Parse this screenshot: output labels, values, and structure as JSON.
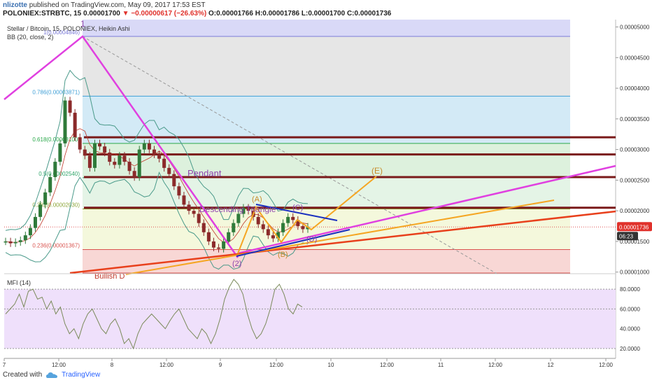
{
  "header": {
    "user": "nlizotte",
    "published": "published on TradingView.com, May 09, 2017 17:53 EST",
    "symbol": "POLONIEX:STRBTC, 15",
    "last": "0.00001700",
    "change": "▼ −0.00000617 (−26.63%)",
    "o": "O:0.00001766",
    "h": "H:0.00001786",
    "l": "L:0.00001700",
    "c": "C:0.00001736"
  },
  "overlay": {
    "title": "Stellar / Bitcoin, 15, POLONIEX, Heikin Ashi",
    "bb": "BB (20, close, 2)",
    "mfi": "MFI (14)"
  },
  "annotations": {
    "wave_1": "1",
    "wave_2": "(2)",
    "wave_a": "(A)",
    "wave_b": "(B)",
    "wave_c": "(C)",
    "wave_d": "(D)",
    "wave_e": "(E)",
    "pennant": "Pendant",
    "triangle": "Descending Triangle",
    "bullish": "Bullish D"
  },
  "price_tag": {
    "value": "0.00001736",
    "countdown": "06:23"
  },
  "footer": {
    "created": "Created with",
    "brand": "TradingView"
  },
  "colors": {
    "magenta": "#e040e0",
    "orange": "#f5a623",
    "red": "#e8401c",
    "navy": "#1a2fbf",
    "bb": "#4a9a8a",
    "resistance": "#7a1a1a",
    "mfi_line": "#7a8a5a",
    "mfi_fill": "#efe0fb"
  },
  "chart_data": [
    {
      "type": "candlestick",
      "title": "Stellar / Bitcoin, 15, POLONIEX, Heikin Ashi",
      "y_ticks": [
        "0.00005000",
        "0.00004500",
        "0.00004000",
        "0.00003500",
        "0.00003000",
        "0.00002500",
        "0.00002000",
        "0.00001500",
        "0.00001000"
      ],
      "x_ticks": [
        "7",
        "12:00",
        "8",
        "12:00",
        "9",
        "12:00",
        "10",
        "12:00",
        "11",
        "12:00",
        "12",
        "12:00"
      ],
      "ylim": [
        9.85e-06,
        5.12e-05
      ],
      "fib_levels": [
        {
          "ratio": 1.0,
          "price": 4.846e-05,
          "label": "1(0.00004846)",
          "color": "#7b7bd8",
          "fill": "#d9d9f7"
        },
        {
          "ratio": 0.786,
          "price": 3.871e-05,
          "label": "0.786(0.00003871)",
          "color": "#3f9fd6",
          "fill": "#e6e6e6"
        },
        {
          "ratio": 0.618,
          "price": 3.1e-05,
          "label": "0.618(0.00003100)",
          "color": "#2aa84a",
          "fill": "#d3eaf6"
        },
        {
          "ratio": 0.5,
          "price": 2.54e-05,
          "label": "0.5(0.00002540)",
          "color": "#31a66a",
          "fill": "#ddf1dd"
        },
        {
          "ratio": 0.382,
          "price": 2.03e-05,
          "label": "0.382(0.00002030)",
          "color": "#8da63a",
          "fill": "#e4f4e6"
        },
        {
          "ratio": 0.236,
          "price": 1.367e-05,
          "label": "0.236(0.00001367)",
          "color": "#d9534f",
          "fill": "#f4f8dc"
        },
        {
          "ratio": 0.0,
          "price": 9.85e-06,
          "label": "",
          "color": "#d9534f",
          "fill": "#f8d7d5"
        }
      ],
      "resistance_levels": [
        3.2e-05,
        2.92e-05,
        2.55e-05,
        2.05e-05
      ],
      "current_price": 1.736e-05,
      "series": [
        {
          "name": "Heikin Ashi close",
          "values": [
            1.5e-05,
            1.47e-05,
            1.49e-05,
            1.52e-05,
            1.6e-05,
            1.72e-05,
            1.9e-05,
            2.1e-05,
            2.3e-05,
            2.55e-05,
            2.8e-05,
            3.1e-05,
            3.8e-05,
            3.6e-05,
            3.2e-05,
            3e-05,
            2.9e-05,
            2.7e-05,
            3.1e-05,
            3.05e-05,
            2.95e-05,
            2.8e-05,
            2.75e-05,
            2.9e-05,
            2.8e-05,
            2.65e-05,
            2.55e-05,
            3e-05,
            3.1e-05,
            3e-05,
            2.92e-05,
            2.85e-05,
            2.7e-05,
            2.6e-05,
            2.4e-05,
            2.25e-05,
            2.1e-05,
            2e-05,
            1.95e-05,
            1.8e-05,
            1.65e-05,
            1.5e-05,
            1.4e-05,
            1.38e-05,
            1.5e-05,
            1.65e-05,
            1.8e-05,
            1.95e-05,
            2.05e-05,
            2e-05,
            1.9e-05,
            1.78e-05,
            1.7e-05,
            1.6e-05,
            1.55e-05,
            1.65e-05,
            1.8e-05,
            1.9e-05,
            1.85e-05,
            1.75e-05,
            1.7e-05,
            1.74e-05
          ]
        }
      ]
    },
    {
      "type": "line",
      "title": "MFI (14)",
      "y_ticks": [
        "80.0000",
        "60.0000",
        "40.0000",
        "20.0000"
      ],
      "ylim": [
        10,
        95
      ],
      "series": [
        {
          "name": "MFI",
          "values": [
            55,
            60,
            65,
            75,
            62,
            78,
            80,
            70,
            72,
            60,
            68,
            55,
            62,
            45,
            35,
            40,
            30,
            45,
            55,
            60,
            50,
            40,
            35,
            45,
            50,
            40,
            25,
            30,
            20,
            35,
            45,
            50,
            55,
            50,
            45,
            40,
            48,
            55,
            60,
            50,
            40,
            35,
            30,
            40,
            35,
            25,
            35,
            50,
            70,
            82,
            90,
            85,
            75,
            55,
            40,
            30,
            35,
            45,
            60,
            80,
            85,
            75,
            60,
            55,
            65,
            62
          ]
        }
      ],
      "reference_lines": [
        80,
        60,
        20
      ]
    }
  ]
}
